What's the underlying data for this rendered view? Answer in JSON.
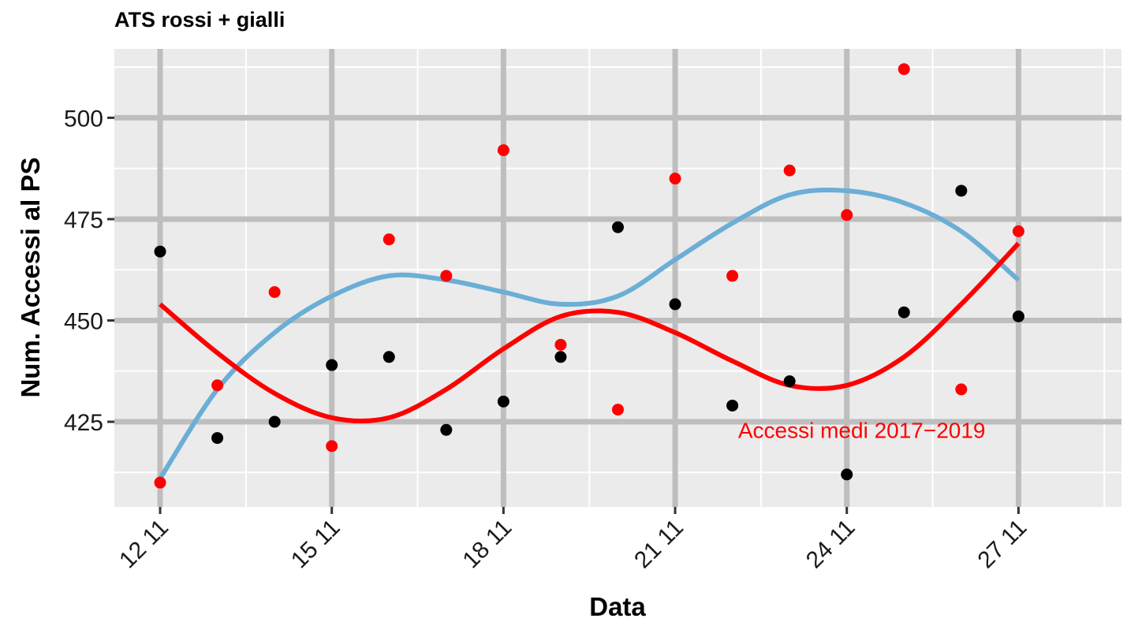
{
  "chart_data": {
    "type": "scatter",
    "title": "ATS rossi + gialli",
    "xlabel": "Data",
    "ylabel": "Num. Accessi al PS",
    "x_ticks": [
      "12 11",
      "15 11",
      "18 11",
      "21 11",
      "24 11",
      "27 11"
    ],
    "x_tick_days": [
      12,
      15,
      18,
      21,
      24,
      27
    ],
    "x_unit": "day of November",
    "xlim": [
      11.2,
      28.8
    ],
    "y_ticks": [
      425,
      450,
      475,
      500
    ],
    "ylim": [
      404,
      517
    ],
    "grid": true,
    "series": [
      {
        "color": "#000000",
        "points": [
          {
            "x": 12,
            "y": 467
          },
          {
            "x": 13,
            "y": 421
          },
          {
            "x": 14,
            "y": 425
          },
          {
            "x": 15,
            "y": 439
          },
          {
            "x": 16,
            "y": 441
          },
          {
            "x": 17,
            "y": 423
          },
          {
            "x": 18,
            "y": 430
          },
          {
            "x": 19,
            "y": 441
          },
          {
            "x": 20,
            "y": 473
          },
          {
            "x": 21,
            "y": 454
          },
          {
            "x": 22,
            "y": 429
          },
          {
            "x": 23,
            "y": 435
          },
          {
            "x": 24,
            "y": 412
          },
          {
            "x": 25,
            "y": 452
          },
          {
            "x": 26,
            "y": 482
          },
          {
            "x": 27,
            "y": 451
          }
        ],
        "smooth": [
          {
            "x": 12,
            "y": 411
          },
          {
            "x": 13,
            "y": 433
          },
          {
            "x": 14,
            "y": 447
          },
          {
            "x": 15,
            "y": 456
          },
          {
            "x": 16,
            "y": 461
          },
          {
            "x": 17,
            "y": 460
          },
          {
            "x": 18,
            "y": 457
          },
          {
            "x": 19,
            "y": 454
          },
          {
            "x": 20,
            "y": 456
          },
          {
            "x": 21,
            "y": 465
          },
          {
            "x": 22,
            "y": 474
          },
          {
            "x": 23,
            "y": 481
          },
          {
            "x": 24,
            "y": 482
          },
          {
            "x": 25,
            "y": 479
          },
          {
            "x": 26,
            "y": 472
          },
          {
            "x": 27,
            "y": 460
          }
        ],
        "smooth_color": "#6baed6"
      },
      {
        "color": "#ff0000",
        "points": [
          {
            "x": 12,
            "y": 410
          },
          {
            "x": 13,
            "y": 434
          },
          {
            "x": 14,
            "y": 457
          },
          {
            "x": 15,
            "y": 419
          },
          {
            "x": 16,
            "y": 470
          },
          {
            "x": 17,
            "y": 461
          },
          {
            "x": 18,
            "y": 492
          },
          {
            "x": 19,
            "y": 444
          },
          {
            "x": 20,
            "y": 428
          },
          {
            "x": 21,
            "y": 485
          },
          {
            "x": 22,
            "y": 461
          },
          {
            "x": 23,
            "y": 487
          },
          {
            "x": 24,
            "y": 476
          },
          {
            "x": 25,
            "y": 512
          },
          {
            "x": 26,
            "y": 433
          },
          {
            "x": 27,
            "y": 472
          }
        ],
        "smooth": [
          {
            "x": 12,
            "y": 454
          },
          {
            "x": 13,
            "y": 442
          },
          {
            "x": 14,
            "y": 432
          },
          {
            "x": 15,
            "y": 426
          },
          {
            "x": 16,
            "y": 426
          },
          {
            "x": 17,
            "y": 433
          },
          {
            "x": 18,
            "y": 443
          },
          {
            "x": 19,
            "y": 451
          },
          {
            "x": 20,
            "y": 452
          },
          {
            "x": 21,
            "y": 447
          },
          {
            "x": 22,
            "y": 440
          },
          {
            "x": 23,
            "y": 434
          },
          {
            "x": 24,
            "y": 434
          },
          {
            "x": 25,
            "y": 441
          },
          {
            "x": 26,
            "y": 454
          },
          {
            "x": 27,
            "y": 469
          }
        ],
        "smooth_color": "#ff0000"
      }
    ],
    "annotations": [
      {
        "text": "Accessi medi 2017−2019",
        "x": 22.1,
        "y": 423,
        "color": "#ff0000"
      }
    ]
  }
}
